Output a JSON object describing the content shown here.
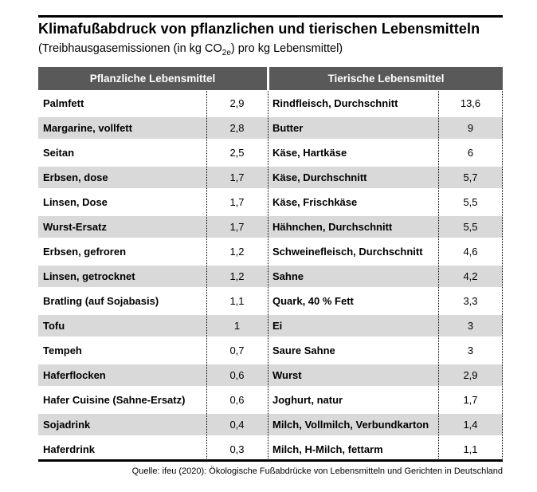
{
  "title": "Klimafußabdruck von pflanzlichen und tierischen Lebensmitteln",
  "subtitle": {
    "prefix": "(Treibhausgasemissionen (in kg CO",
    "subscript": "2e",
    "suffix": ") pro kg Lebensmittel)"
  },
  "source": "Quelle: ifeu (2020): Ökologische Fußabdrücke von Lebensmitteln und Gerichten in Deutschland",
  "colors": {
    "header_bg": "#595959",
    "header_text": "#ffffff",
    "row_alt_bg": "#d9d9d9",
    "text": "#000000",
    "rule": "#000000"
  },
  "chart_data": {
    "type": "table",
    "title": "Klimafußabdruck von pflanzlichen und tierischen Lebensmitteln",
    "subtitle": "(Treibhausgasemissionen (in kg CO2e) pro kg Lebensmittel)",
    "unit": "kg CO2e pro kg Lebensmittel",
    "decimal_separator": ",",
    "columns": [
      "Pflanzliche Lebensmittel",
      "Tierische Lebensmittel"
    ],
    "series": [
      {
        "name": "Pflanzliche Lebensmittel",
        "items": [
          [
            "Palmfett",
            2.9
          ],
          [
            "Margarine, vollfett",
            2.8
          ],
          [
            "Seitan",
            2.5
          ],
          [
            "Erbsen, dose",
            1.7
          ],
          [
            "Linsen, Dose",
            1.7
          ],
          [
            "Wurst-Ersatz",
            1.7
          ],
          [
            "Erbsen, gefroren",
            1.2
          ],
          [
            "Linsen, getrocknet",
            1.2
          ],
          [
            "Bratling (auf Sojabasis)",
            1.1
          ],
          [
            "Tofu",
            1
          ],
          [
            "Tempeh",
            0.7
          ],
          [
            "Haferflocken",
            0.6
          ],
          [
            "Hafer Cuisine (Sahne-Ersatz)",
            0.6
          ],
          [
            "Sojadrink",
            0.4
          ],
          [
            "Haferdrink",
            0.3
          ]
        ]
      },
      {
        "name": "Tierische Lebensmittel",
        "items": [
          [
            "Rindfleisch, Durchschnitt",
            13.6
          ],
          [
            "Butter",
            9
          ],
          [
            "Käse, Hartkäse",
            6
          ],
          [
            "Käse, Durchschnitt",
            5.7
          ],
          [
            "Käse, Frischkäse",
            5.5
          ],
          [
            "Hähnchen, Durchschnitt",
            5.5
          ],
          [
            "Schweinefleisch, Durchschnitt",
            4.6
          ],
          [
            "Sahne",
            4.2
          ],
          [
            "Quark, 40 % Fett",
            3.3
          ],
          [
            "Ei",
            3
          ],
          [
            "Saure Sahne",
            3
          ],
          [
            "Wurst",
            2.9
          ],
          [
            "Joghurt, natur",
            1.7
          ],
          [
            "Milch, Vollmilch, Verbundkarton",
            1.4
          ],
          [
            "Milch, H-Milch, fettarm",
            1.1
          ]
        ]
      }
    ],
    "source": "Quelle: ifeu (2020): Ökologische Fußabdrücke von Lebensmitteln und Gerichten in Deutschland"
  }
}
